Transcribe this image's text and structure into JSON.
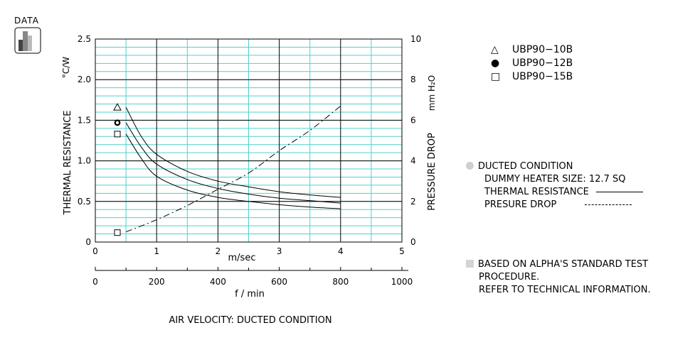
{
  "badge": {
    "label": "DATA"
  },
  "legend": [
    {
      "symbol": "△",
      "label": "UBP90−10B"
    },
    {
      "symbol": "●",
      "label": "UBP90−12B"
    },
    {
      "symbol": "□",
      "label": "UBP90−15B"
    }
  ],
  "condition": {
    "title": "DUCTED CONDITION",
    "heater": "DUMMY HEATER SIZE: 12.7 SQ",
    "thermal": "THERMAL RESISTANCE",
    "pressure": "PRESURE DROP"
  },
  "note": {
    "line1": "BASED ON ALPHA'S STANDARD TEST",
    "line2": "PROCEDURE.",
    "line3": "REFER TO TECHNICAL INFORMATION."
  },
  "colors": {
    "grid": "#4fd0d0",
    "frame": "#000000",
    "curve": "#000000"
  },
  "chart_data": {
    "type": "line",
    "title": "AIR VELOCITY:  DUCTED CONDITION",
    "xlabel": "m/sec",
    "x2label": "f / min",
    "ylabel": "THERMAL  RESISTANCE",
    "yunit": "°C/W",
    "y2label": "PRESSURE  DROP",
    "y2unit": "mm H₂O",
    "xlim": [
      0,
      5
    ],
    "x2lim": [
      0,
      1000
    ],
    "ylim": [
      0,
      2.5
    ],
    "y2lim": [
      0,
      10
    ],
    "xticks": [
      "0",
      "1",
      "2",
      "3",
      "4",
      "5"
    ],
    "x2ticks": [
      "0",
      "200",
      "400",
      "600",
      "800",
      "1000"
    ],
    "yticks": [
      "0",
      "0.5",
      "1.0",
      "1.5",
      "2.0",
      "2.5"
    ],
    "y2ticks": [
      "0",
      "2",
      "4",
      "6",
      "8",
      "10"
    ],
    "grid": true,
    "series": [
      {
        "name": "UBP90−10B",
        "marker": "triangle",
        "axis": "left",
        "x": [
          0.5,
          0.75,
          1.0,
          1.5,
          2.0,
          2.5,
          3.0,
          3.5,
          4.0
        ],
        "y": [
          1.66,
          1.3,
          1.08,
          0.87,
          0.75,
          0.68,
          0.62,
          0.58,
          0.55
        ]
      },
      {
        "name": "UBP90−12B",
        "marker": "circle",
        "axis": "left",
        "x": [
          0.5,
          0.75,
          1.0,
          1.5,
          2.0,
          2.5,
          3.0,
          3.5,
          4.0
        ],
        "y": [
          1.47,
          1.17,
          0.96,
          0.77,
          0.66,
          0.59,
          0.54,
          0.51,
          0.48
        ]
      },
      {
        "name": "UBP90−15B",
        "marker": "square",
        "axis": "left",
        "x": [
          0.5,
          0.75,
          1.0,
          1.5,
          2.0,
          2.5,
          3.0,
          3.5,
          4.0
        ],
        "y": [
          1.33,
          1.03,
          0.81,
          0.64,
          0.55,
          0.5,
          0.46,
          0.43,
          0.41
        ]
      },
      {
        "name": "PRESURE DROP",
        "marker": "none",
        "axis": "right",
        "style": "dashed",
        "x": [
          0.5,
          1.0,
          1.5,
          2.0,
          2.5,
          3.0,
          3.5,
          4.0
        ],
        "y": [
          0.5,
          1.1,
          1.8,
          2.6,
          3.4,
          4.5,
          5.5,
          6.7
        ]
      }
    ]
  }
}
